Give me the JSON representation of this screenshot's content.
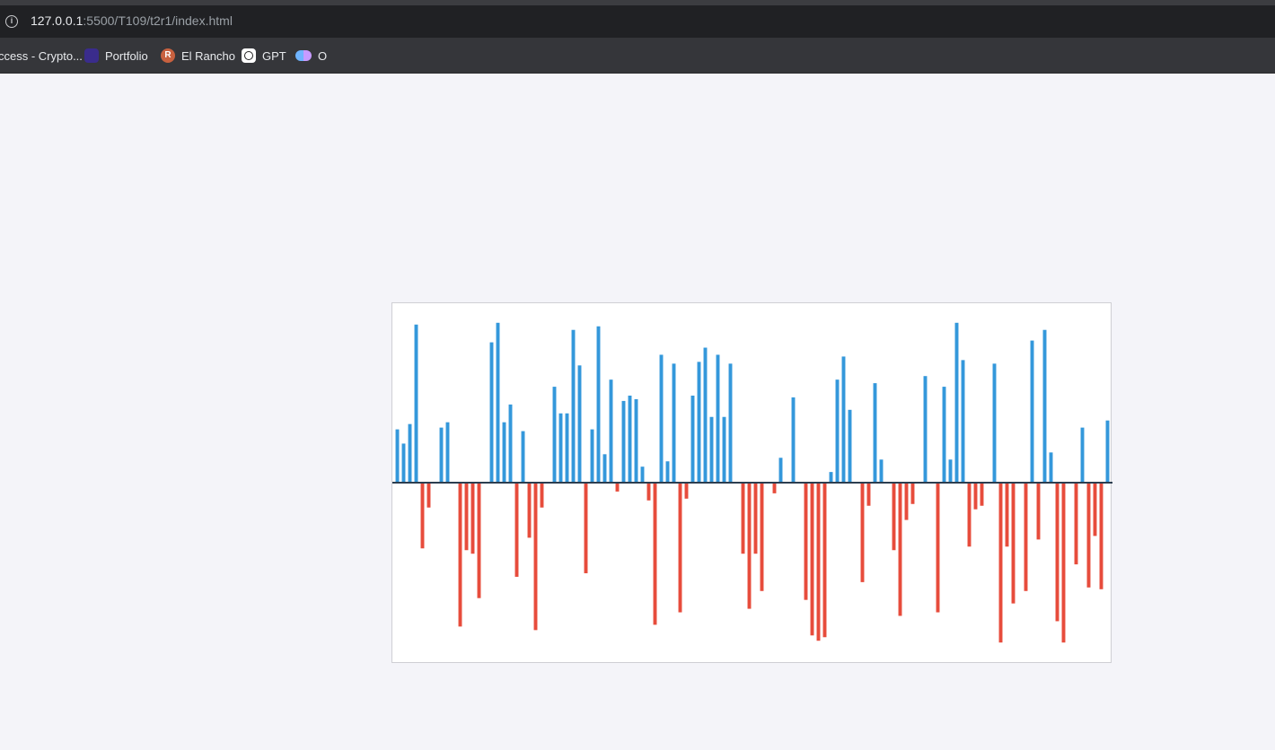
{
  "browser": {
    "url_host": "127.0.0.1",
    "url_path": ":5500/T109/t2r1/index.html",
    "bookmarks": [
      {
        "label": "ccess - Crypto...",
        "icon": "none"
      },
      {
        "label": "Portfolio",
        "icon": "portfolio-icon"
      },
      {
        "label": "El Rancho",
        "icon": "rancho-icon"
      },
      {
        "label": "GPT",
        "icon": "gpt-icon"
      },
      {
        "label": "O",
        "icon": "o-icon"
      }
    ]
  },
  "colors": {
    "positive": "#3498db",
    "negative": "#e74c3c",
    "baseline": "#2c3e50"
  },
  "chart_data": {
    "type": "bar",
    "grid": false,
    "legend": "none",
    "ylim": [
      -1,
      1
    ],
    "values": [
      0.3,
      0.22,
      0.33,
      0.89,
      -0.37,
      -0.14,
      0,
      0.31,
      0.34,
      0,
      -0.81,
      -0.38,
      -0.4,
      -0.65,
      0,
      0.79,
      0.9,
      0.34,
      0.44,
      -0.53,
      0.29,
      -0.31,
      -0.83,
      -0.14,
      0,
      0.54,
      0.39,
      0.39,
      0.86,
      0.66,
      -0.51,
      0.3,
      0.88,
      0.16,
      0.58,
      -0.05,
      0.46,
      0.49,
      0.47,
      0.09,
      -0.1,
      -0.8,
      0.72,
      0.12,
      0.67,
      -0.73,
      -0.09,
      0.49,
      0.68,
      0.76,
      0.37,
      0.72,
      0.37,
      0.67,
      0,
      -0.4,
      -0.71,
      -0.4,
      -0.61,
      0,
      -0.06,
      0.14,
      0,
      0.48,
      0,
      -0.66,
      -0.86,
      -0.89,
      -0.87,
      0.06,
      0.58,
      0.71,
      0.41,
      0,
      -0.56,
      -0.13,
      0.56,
      0.13,
      0,
      -0.38,
      -0.75,
      -0.21,
      -0.12,
      0,
      0.6,
      0,
      -0.73,
      0.54,
      0.13,
      0.9,
      0.69,
      -0.36,
      -0.15,
      -0.13,
      0,
      0.67,
      -0.9,
      -0.36,
      -0.68,
      0,
      -0.61,
      0.8,
      -0.32,
      0.86,
      0.17,
      -0.78,
      -0.9,
      0,
      -0.46,
      0.31,
      -0.59,
      -0.3,
      -0.6,
      0.35
    ]
  }
}
